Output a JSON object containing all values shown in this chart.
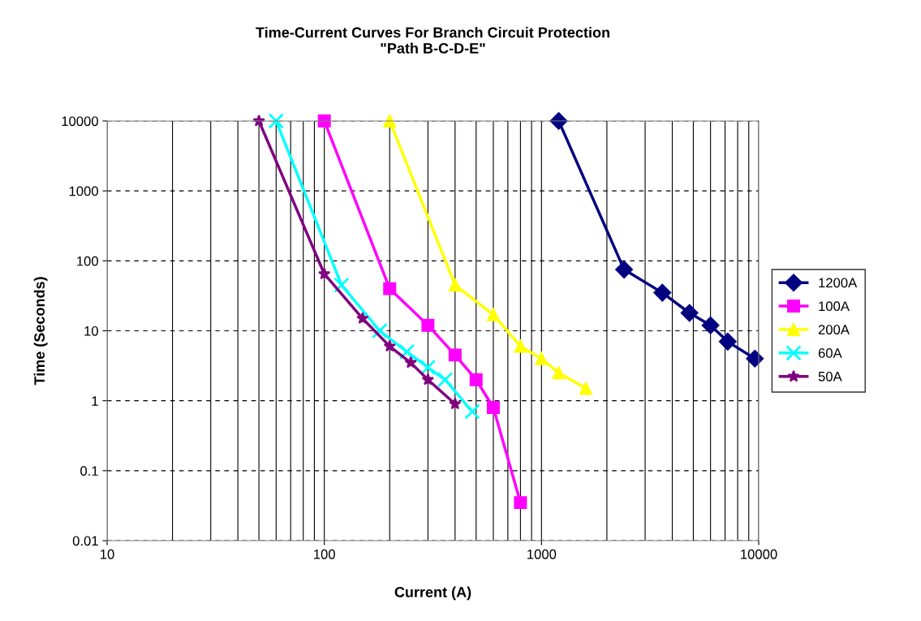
{
  "chart_data": {
    "type": "line",
    "title": "Time-Current Curves For Branch Circuit Protection\n\"Path B-C-D-E\"",
    "xlabel": "Current (A)",
    "ylabel": "Time (Seconds)",
    "log": "xy",
    "xlim": [
      10,
      10000
    ],
    "ylim": [
      0.01,
      10000
    ],
    "xticks": [
      10,
      100,
      1000,
      10000
    ],
    "yticks": [
      0.01,
      0.1,
      1,
      10,
      100,
      1000,
      10000
    ],
    "grid": true,
    "legend": "right",
    "series": [
      {
        "name": "1200A",
        "color": "#000080",
        "marker": "diamond",
        "x": [
          1200,
          2400,
          3600,
          4800,
          6000,
          7200,
          9600
        ],
        "values": [
          10000,
          75,
          35,
          18,
          12,
          7,
          4
        ]
      },
      {
        "name": "100A",
        "color": "#ff00ff",
        "marker": "square",
        "x": [
          100,
          200,
          300,
          400,
          500,
          600,
          800
        ],
        "values": [
          10000,
          40,
          12,
          4.5,
          2,
          0.8,
          0.035
        ]
      },
      {
        "name": "200A",
        "color": "#ffff00",
        "marker": "triangle",
        "x": [
          200,
          400,
          600,
          800,
          1000,
          1200,
          1600
        ],
        "values": [
          10000,
          45,
          17,
          6,
          4,
          2.5,
          1.5
        ]
      },
      {
        "name": "60A",
        "color": "#00ffff",
        "marker": "cross",
        "x": [
          60,
          120,
          180,
          240,
          300,
          360,
          480
        ],
        "values": [
          10000,
          45,
          10,
          5,
          3,
          2,
          0.7
        ]
      },
      {
        "name": "50A",
        "color": "#800080",
        "marker": "star",
        "x": [
          50,
          100,
          150,
          200,
          250,
          300,
          400
        ],
        "values": [
          10000,
          65,
          15,
          6,
          3.5,
          2,
          0.9
        ]
      }
    ]
  }
}
